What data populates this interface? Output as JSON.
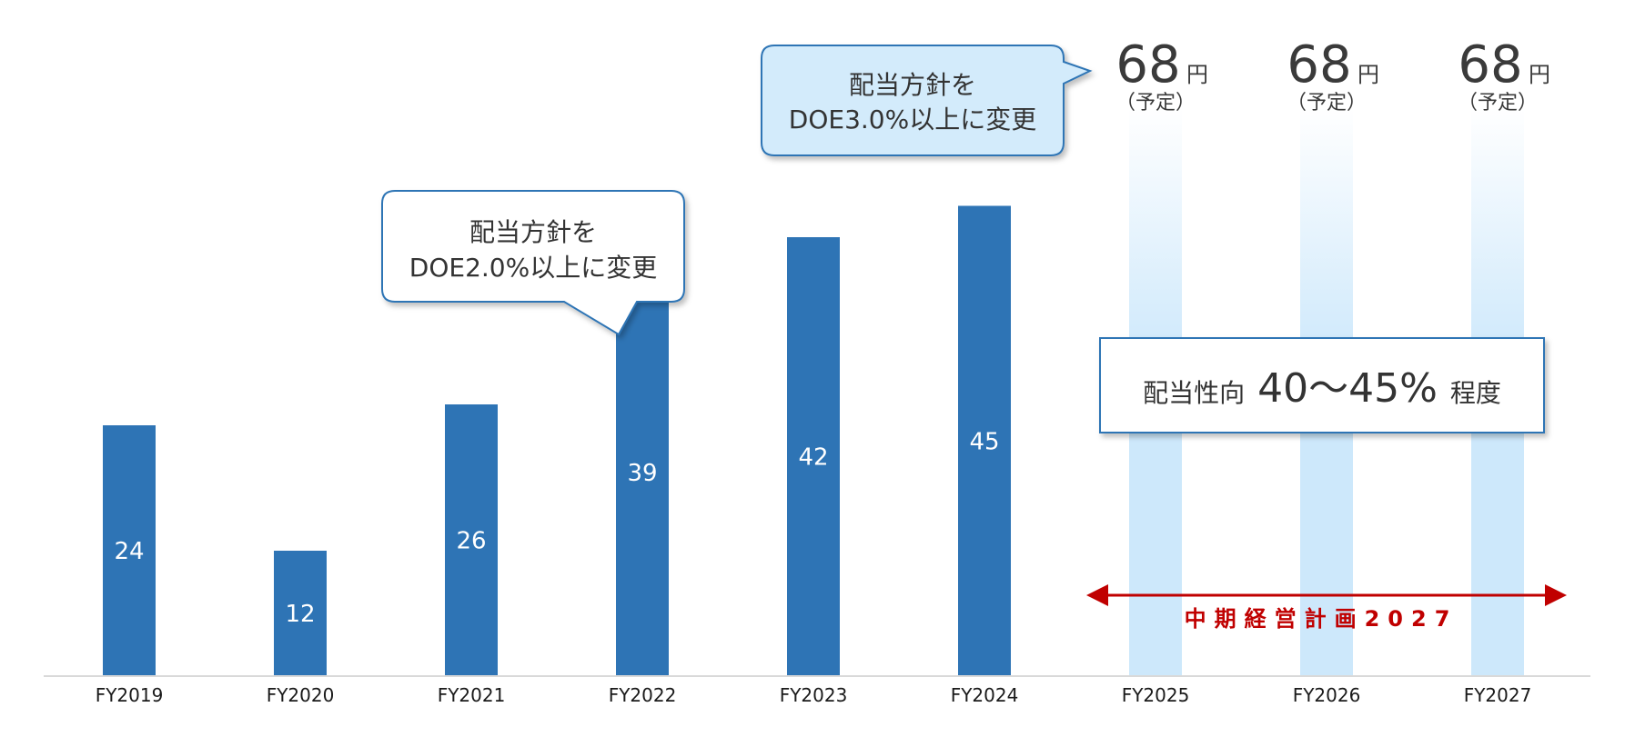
{
  "chart_data": {
    "type": "bar",
    "categories": [
      "FY2019",
      "FY2020",
      "FY2021",
      "FY2022",
      "FY2023",
      "FY2024",
      "FY2025",
      "FY2026",
      "FY2027"
    ],
    "values": [
      24,
      12,
      26,
      39,
      42,
      45,
      null,
      null,
      null
    ],
    "ylim": [
      0,
      56
    ],
    "grid": false,
    "forecasts": [
      {
        "category": "FY2025",
        "value": "68",
        "unit": "円",
        "note": "（予定）"
      },
      {
        "category": "FY2026",
        "value": "68",
        "unit": "円",
        "note": "（予定）"
      },
      {
        "category": "FY2027",
        "value": "68",
        "unit": "円",
        "note": "（予定）"
      }
    ],
    "annotations": {
      "callout_doe2": {
        "line1": "配当方針を",
        "line2": "DOE2.0%以上に変更"
      },
      "callout_doe3": {
        "line1": "配当方針を",
        "line2": "DOE3.0%以上に変更"
      },
      "payout_ratio": {
        "label": "配当性向",
        "value": "40～45%",
        "suffix": "程度"
      },
      "plan_period": "中期経営計画2027"
    }
  },
  "colors": {
    "bar": "#2e74b5",
    "forecast_column": "#cde8fb",
    "callout_fill": "#d3ebfb",
    "callout_stroke": "#2e74b5",
    "plan_text": "#c00000",
    "axis": "#d9d9d9"
  }
}
